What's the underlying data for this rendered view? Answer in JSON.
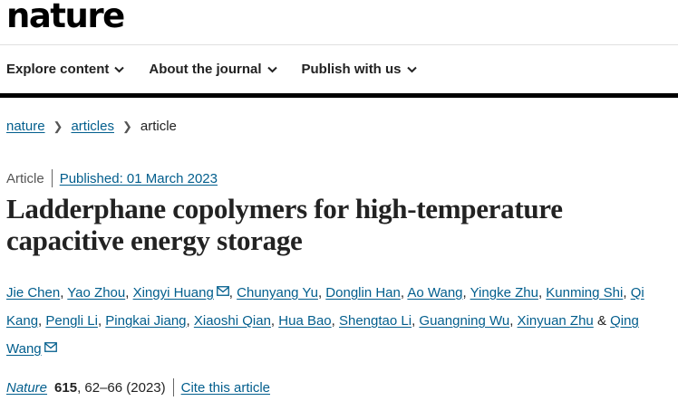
{
  "header": {
    "logo": "nature",
    "nav": [
      {
        "label": "Explore content"
      },
      {
        "label": "About the journal"
      },
      {
        "label": "Publish with us"
      }
    ]
  },
  "breadcrumb": [
    {
      "label": "nature"
    },
    {
      "label": "articles"
    },
    {
      "label": "article"
    }
  ],
  "article": {
    "type": "Article",
    "published": "Published: 01 March 2023",
    "title": "Ladderphane copolymers for high-temperature capacitive energy storage",
    "authors": [
      {
        "name": "Jie Chen"
      },
      {
        "name": "Yao Zhou"
      },
      {
        "name": "Xingyi Huang",
        "email": true
      },
      {
        "name": "Chunyang Yu"
      },
      {
        "name": "Donglin Han"
      },
      {
        "name": "Ao Wang"
      },
      {
        "name": "Yingke Zhu"
      },
      {
        "name": "Kunming Shi"
      },
      {
        "name": "Qi Kang"
      },
      {
        "name": "Pengli Li"
      },
      {
        "name": "Pingkai Jiang"
      },
      {
        "name": "Xiaoshi Qian"
      },
      {
        "name": "Hua Bao"
      },
      {
        "name": "Shengtao Li"
      },
      {
        "name": "Guangning Wu"
      },
      {
        "name": "Xinyuan Zhu"
      },
      {
        "name": "Qing Wang",
        "email": true
      }
    ],
    "and": "&",
    "journal": "Nature",
    "volume": "615",
    "pages": ", 62–66 (2023)",
    "cite_label": "Cite this article"
  },
  "colors": {
    "link": "#025e8d",
    "text": "#222222"
  }
}
